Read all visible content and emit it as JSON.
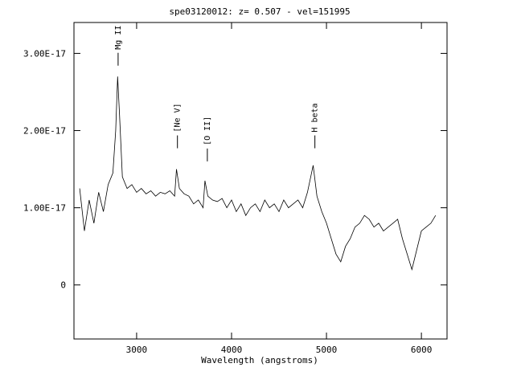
{
  "chart_data": {
    "type": "line",
    "title": "spe03120012: z= 0.507 - vel=151995",
    "xlabel": "Wavelength (angstroms)",
    "ylabel": "",
    "xlim": [
      2340,
      6270
    ],
    "ylim": [
      -7e-18,
      3.4e-17
    ],
    "x_ticks": [
      {
        "value": 3000,
        "label": "3000"
      },
      {
        "value": 4000,
        "label": "4000"
      },
      {
        "value": 5000,
        "label": "5000"
      },
      {
        "value": 6000,
        "label": "6000"
      }
    ],
    "y_ticks": [
      {
        "value": 0,
        "label": "0"
      },
      {
        "value": 1e-17,
        "label": "1.00E-17"
      },
      {
        "value": 2e-17,
        "label": "2.00E-17"
      },
      {
        "value": 3e-17,
        "label": "3.00E-17"
      }
    ],
    "line_labels": [
      {
        "label": "Mg II",
        "wavelength": 2805,
        "flux": 2.82e-17
      },
      {
        "label": "[Ne V]",
        "wavelength": 3430,
        "flux": 1.75e-17
      },
      {
        "label": "[O II]",
        "wavelength": 3745,
        "flux": 1.58e-17
      },
      {
        "label": "H beta",
        "wavelength": 4878,
        "flux": 1.75e-17
      }
    ],
    "series": [
      {
        "points": [
          [
            2400,
            1.25e-17
          ],
          [
            2450,
            7e-18
          ],
          [
            2500,
            1.1e-17
          ],
          [
            2550,
            8e-18
          ],
          [
            2600,
            1.2e-17
          ],
          [
            2650,
            9.5e-18
          ],
          [
            2700,
            1.3e-17
          ],
          [
            2750,
            1.45e-17
          ],
          [
            2780,
            2e-17
          ],
          [
            2800,
            2.7e-17
          ],
          [
            2820,
            2.2e-17
          ],
          [
            2850,
            1.4e-17
          ],
          [
            2900,
            1.25e-17
          ],
          [
            2950,
            1.3e-17
          ],
          [
            3000,
            1.2e-17
          ],
          [
            3050,
            1.25e-17
          ],
          [
            3100,
            1.18e-17
          ],
          [
            3150,
            1.22e-17
          ],
          [
            3200,
            1.15e-17
          ],
          [
            3250,
            1.2e-17
          ],
          [
            3300,
            1.18e-17
          ],
          [
            3350,
            1.22e-17
          ],
          [
            3400,
            1.15e-17
          ],
          [
            3420,
            1.5e-17
          ],
          [
            3450,
            1.25e-17
          ],
          [
            3500,
            1.18e-17
          ],
          [
            3550,
            1.15e-17
          ],
          [
            3600,
            1.05e-17
          ],
          [
            3650,
            1.1e-17
          ],
          [
            3700,
            1e-17
          ],
          [
            3720,
            1.35e-17
          ],
          [
            3750,
            1.15e-17
          ],
          [
            3800,
            1.1e-17
          ],
          [
            3850,
            1.08e-17
          ],
          [
            3900,
            1.12e-17
          ],
          [
            3950,
            1e-17
          ],
          [
            4000,
            1.1e-17
          ],
          [
            4050,
            9.5e-18
          ],
          [
            4100,
            1.05e-17
          ],
          [
            4150,
            9e-18
          ],
          [
            4200,
            1e-17
          ],
          [
            4250,
            1.05e-17
          ],
          [
            4300,
            9.5e-18
          ],
          [
            4350,
            1.1e-17
          ],
          [
            4400,
            1e-17
          ],
          [
            4450,
            1.05e-17
          ],
          [
            4500,
            9.5e-18
          ],
          [
            4550,
            1.1e-17
          ],
          [
            4600,
            1e-17
          ],
          [
            4650,
            1.05e-17
          ],
          [
            4700,
            1.1e-17
          ],
          [
            4750,
            1e-17
          ],
          [
            4800,
            1.2e-17
          ],
          [
            4860,
            1.55e-17
          ],
          [
            4900,
            1.15e-17
          ],
          [
            4950,
            9.5e-18
          ],
          [
            5000,
            8e-18
          ],
          [
            5050,
            6e-18
          ],
          [
            5100,
            4e-18
          ],
          [
            5150,
            3e-18
          ],
          [
            5200,
            5e-18
          ],
          [
            5250,
            6e-18
          ],
          [
            5300,
            7.5e-18
          ],
          [
            5350,
            8e-18
          ],
          [
            5400,
            9e-18
          ],
          [
            5450,
            8.5e-18
          ],
          [
            5500,
            7.5e-18
          ],
          [
            5550,
            8e-18
          ],
          [
            5600,
            7e-18
          ],
          [
            5650,
            7.5e-18
          ],
          [
            5700,
            8e-18
          ],
          [
            5750,
            8.5e-18
          ],
          [
            5800,
            6e-18
          ],
          [
            5850,
            4e-18
          ],
          [
            5900,
            2e-18
          ],
          [
            5950,
            4.5e-18
          ],
          [
            6000,
            7e-18
          ],
          [
            6050,
            7.5e-18
          ],
          [
            6100,
            8e-18
          ],
          [
            6150,
            9e-18
          ]
        ]
      }
    ]
  }
}
